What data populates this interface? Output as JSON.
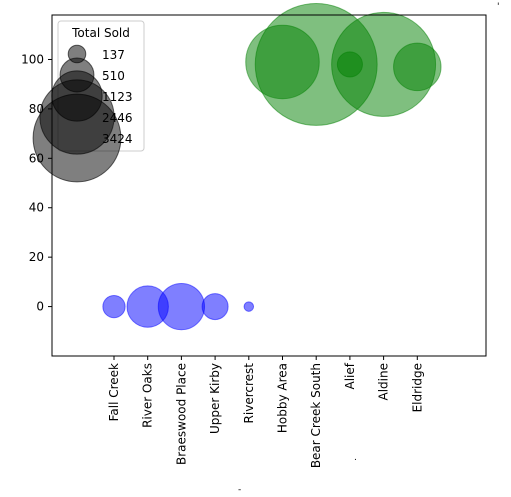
{
  "chart_data": {
    "type": "scatter",
    "categories": [
      "Fall Creek",
      "River Oaks",
      "Braeswood Place",
      "Upper Kirby",
      "Rivercrest",
      "Hobby Area",
      "Bear Creek South",
      "Alief",
      "Aldine",
      "Eldridge"
    ],
    "ylim": [
      -20,
      118
    ],
    "yticks": [
      0,
      20,
      40,
      60,
      80,
      100
    ],
    "series": [
      {
        "color": "#0000ff",
        "points": [
          {
            "category": "Fall Creek",
            "y": 0,
            "size": 220
          },
          {
            "category": "River Oaks",
            "y": 0,
            "size": 760
          },
          {
            "category": "Braeswood Place",
            "y": 0,
            "size": 950
          },
          {
            "category": "Upper Kirby",
            "y": 0,
            "size": 300
          },
          {
            "category": "Rivercrest",
            "y": 0,
            "size": 40
          }
        ]
      },
      {
        "color": "#008000",
        "points": [
          {
            "category": "Hobby Area",
            "y": 99,
            "size": 2400
          },
          {
            "category": "Bear Creek South",
            "y": 98,
            "size": 6600
          },
          {
            "category": "Alief",
            "y": 98,
            "size": 280
          },
          {
            "category": "Aldine",
            "y": 98,
            "size": 4800
          },
          {
            "category": "Eldridge",
            "y": 97,
            "size": 1000
          }
        ]
      }
    ],
    "legend": {
      "title": "Total Sold",
      "placement": "upper-left",
      "color": "#000000",
      "entries": [
        {
          "label": "137",
          "size": 137
        },
        {
          "label": "510",
          "size": 510
        },
        {
          "label": "1123",
          "size": 1123
        },
        {
          "label": "2446",
          "size": 2446
        },
        {
          "label": "3424",
          "size": 3424
        }
      ]
    },
    "grid": false
  }
}
